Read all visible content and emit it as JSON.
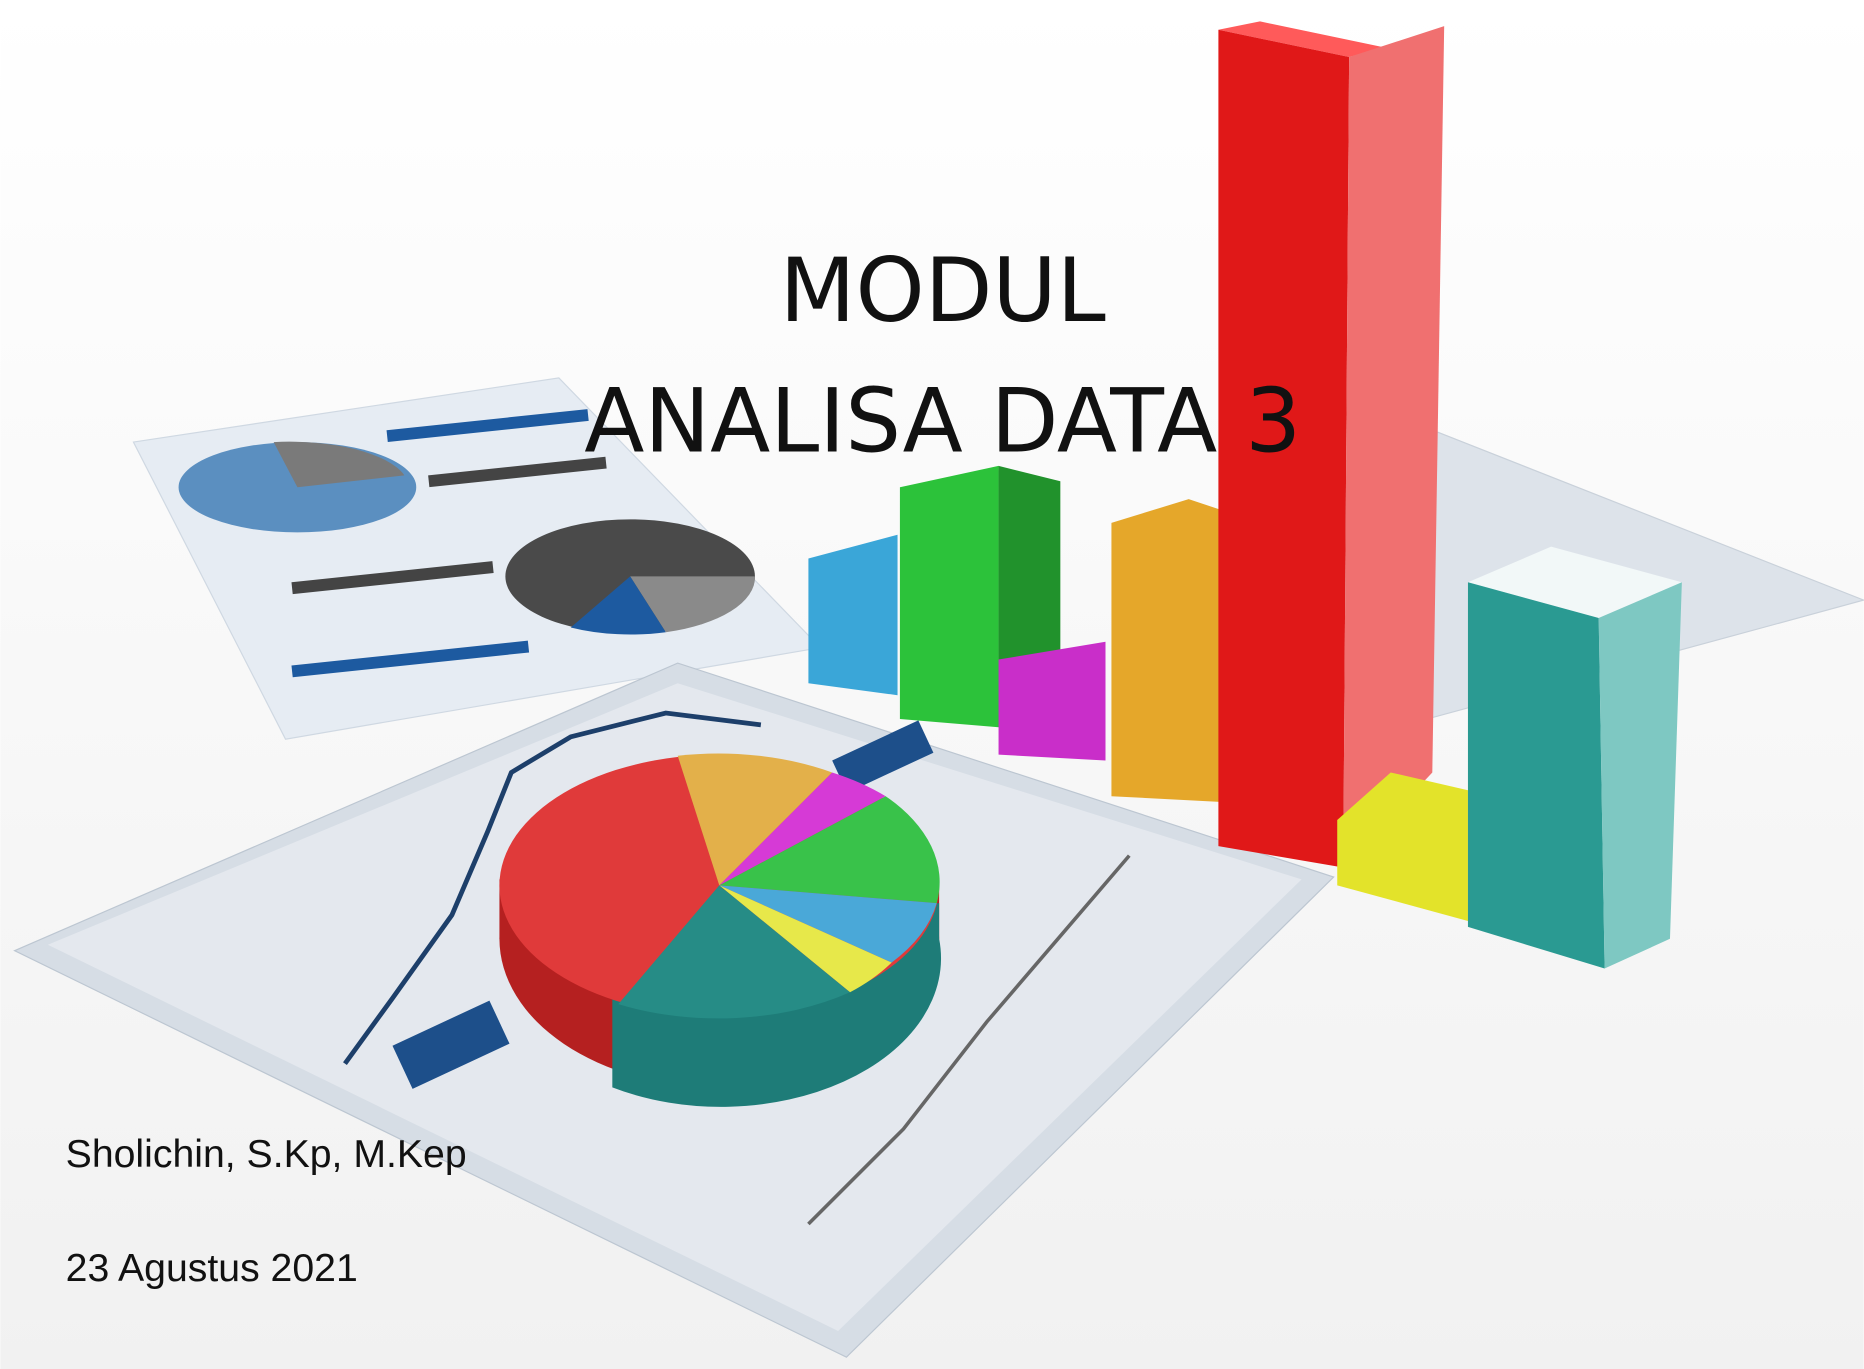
{
  "slide": {
    "title": {
      "line1": "MODUL",
      "line2": "ANALISA DATA 3"
    },
    "author": "Sholichin, S.Kp, M.Kep",
    "date": "23 Agustus 2021"
  }
}
